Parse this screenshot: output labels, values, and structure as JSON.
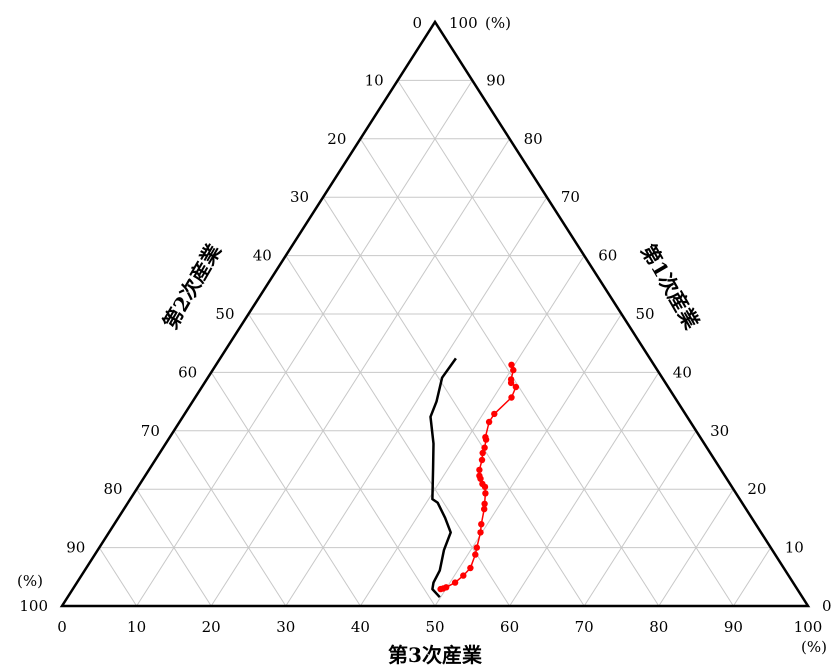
{
  "chart_data": {
    "type": "scatter",
    "subtype": "ternary",
    "grid": true,
    "axes": {
      "bottom": {
        "label": "第3次産業",
        "ticks": [
          "0",
          "10",
          "20",
          "30",
          "40",
          "50",
          "60",
          "70",
          "80",
          "90",
          "100"
        ],
        "unit": "(%)"
      },
      "left": {
        "label": "第2次産業",
        "ticks": [
          "10",
          "20",
          "30",
          "40",
          "50",
          "60",
          "70",
          "80",
          "90",
          "100"
        ],
        "unit": "(%)"
      },
      "right": {
        "label": "第1次産業",
        "ticks": [
          "0",
          "10",
          "20",
          "30",
          "40",
          "50",
          "60",
          "70",
          "80",
          "90",
          "100"
        ],
        "unit": "(%)"
      },
      "top_left_tick": "0"
    },
    "series": [
      {
        "style": "line",
        "color": "#000000",
        "points": [
          {
            "tertiary": 31.6,
            "secondary": 26.0,
            "primary": 42.4
          },
          {
            "tertiary": 31.4,
            "secondary": 29.5,
            "primary": 39.1
          },
          {
            "tertiary": 32.7,
            "secondary": 32.3,
            "primary": 35.0
          },
          {
            "tertiary": 33.2,
            "secondary": 34.4,
            "primary": 32.4
          },
          {
            "tertiary": 35.9,
            "secondary": 36.3,
            "primary": 27.8
          },
          {
            "tertiary": 37.9,
            "secondary": 38.4,
            "primary": 23.7
          },
          {
            "tertiary": 40.5,
            "secondary": 41.2,
            "primary": 18.3
          },
          {
            "tertiary": 41.5,
            "secondary": 40.8,
            "primary": 17.7
          },
          {
            "tertiary": 43.8,
            "secondary": 41.1,
            "primary": 15.1
          },
          {
            "tertiary": 45.8,
            "secondary": 41.6,
            "primary": 12.6
          },
          {
            "tertiary": 46.4,
            "secondary": 44.0,
            "primary": 9.6
          },
          {
            "tertiary": 47.6,
            "secondary": 46.3,
            "primary": 6.1
          },
          {
            "tertiary": 47.8,
            "secondary": 48.2,
            "primary": 4.0
          },
          {
            "tertiary": 48.2,
            "secondary": 48.9,
            "primary": 2.9
          },
          {
            "tertiary": 49.9,
            "secondary": 48.6,
            "primary": 1.5
          }
        ]
      },
      {
        "style": "line-markers",
        "color": "#ff0000",
        "points": [
          {
            "tertiary": 39.6,
            "secondary": 19.1,
            "primary": 41.3
          },
          {
            "tertiary": 40.3,
            "secondary": 19.3,
            "primary": 40.4
          },
          {
            "tertiary": 40.8,
            "secondary": 20.4,
            "primary": 38.8
          },
          {
            "tertiary": 41.1,
            "secondary": 20.7,
            "primary": 38.2
          },
          {
            "tertiary": 42.1,
            "secondary": 20.4,
            "primary": 37.5
          },
          {
            "tertiary": 42.4,
            "secondary": 21.9,
            "primary": 35.7
          },
          {
            "tertiary": 41.5,
            "secondary": 25.6,
            "primary": 32.9
          },
          {
            "tertiary": 41.5,
            "secondary": 27.0,
            "primary": 31.5
          },
          {
            "tertiary": 42.3,
            "secondary": 28.8,
            "primary": 28.9
          },
          {
            "tertiary": 42.6,
            "secondary": 28.9,
            "primary": 28.5
          },
          {
            "tertiary": 43.1,
            "secondary": 29.8,
            "primary": 27.1
          },
          {
            "tertiary": 43.3,
            "secondary": 30.5,
            "primary": 26.2
          },
          {
            "tertiary": 43.8,
            "secondary": 31.2,
            "primary": 25.0
          },
          {
            "tertiary": 44.3,
            "secondary": 32.4,
            "primary": 23.3
          },
          {
            "tertiary": 44.8,
            "secondary": 32.9,
            "primary": 22.3
          },
          {
            "tertiary": 45.2,
            "secondary": 33.0,
            "primary": 21.8
          },
          {
            "tertiary": 45.9,
            "secondary": 33.2,
            "primary": 20.9
          },
          {
            "tertiary": 46.5,
            "secondary": 33.1,
            "primary": 20.4
          },
          {
            "tertiary": 47.1,
            "secondary": 33.6,
            "primary": 19.3
          },
          {
            "tertiary": 47.9,
            "secondary": 34.6,
            "primary": 17.5
          },
          {
            "tertiary": 48.3,
            "secondary": 35.1,
            "primary": 16.6
          },
          {
            "tertiary": 49.2,
            "secondary": 36.8,
            "primary": 14.0
          },
          {
            "tertiary": 49.8,
            "secondary": 37.6,
            "primary": 12.6
          },
          {
            "tertiary": 50.6,
            "secondary": 39.4,
            "primary": 10.0
          },
          {
            "tertiary": 51.0,
            "secondary": 40.2,
            "primary": 8.8
          },
          {
            "tertiary": 51.5,
            "secondary": 42.0,
            "primary": 6.5
          },
          {
            "tertiary": 51.2,
            "secondary": 43.6,
            "primary": 5.2
          },
          {
            "tertiary": 50.7,
            "secondary": 45.3,
            "primary": 4.0
          },
          {
            "tertiary": 49.9,
            "secondary": 46.9,
            "primary": 3.2
          },
          {
            "tertiary": 49.3,
            "secondary": 47.8,
            "primary": 2.9
          },
          {
            "tertiary": 49.6,
            "secondary": 47.4,
            "primary": 3.0
          }
        ]
      }
    ]
  }
}
